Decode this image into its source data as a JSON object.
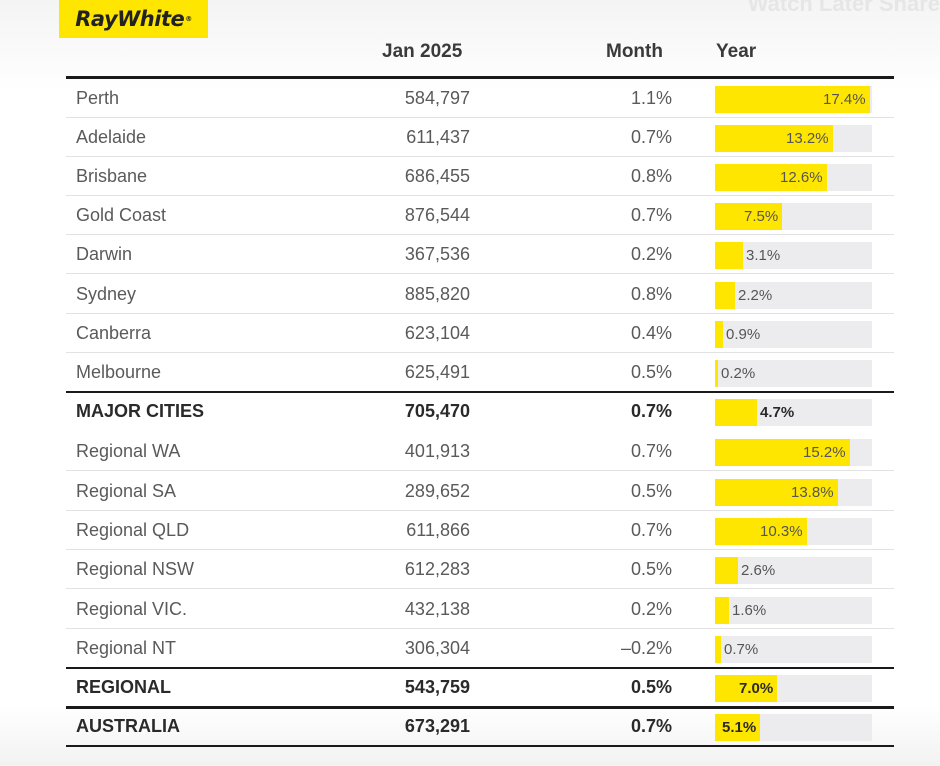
{
  "logo": {
    "text": "RayWhite",
    "mark": "®"
  },
  "corner_text": "Watch Later  Share",
  "header": {
    "col_value": "Jan 2025",
    "col_month": "Month",
    "col_year": "Year"
  },
  "colors": {
    "accent": "#ffe600",
    "track": "#ececef",
    "text": "#5a5a5a",
    "rule": "#1a1a1a"
  },
  "rows": [
    {
      "name": "Perth",
      "value": "584,797",
      "month": "1.1%",
      "year": "17.4%",
      "year_num": 17.4
    },
    {
      "name": "Adelaide",
      "value": "611,437",
      "month": "0.7%",
      "year": "13.2%",
      "year_num": 13.2
    },
    {
      "name": "Brisbane",
      "value": "686,455",
      "month": "0.8%",
      "year": "12.6%",
      "year_num": 12.6
    },
    {
      "name": "Gold Coast",
      "value": "876,544",
      "month": "0.7%",
      "year": "7.5%",
      "year_num": 7.5
    },
    {
      "name": "Darwin",
      "value": "367,536",
      "month": "0.2%",
      "year": "3.1%",
      "year_num": 3.1
    },
    {
      "name": "Sydney",
      "value": "885,820",
      "month": "0.8%",
      "year": "2.2%",
      "year_num": 2.2
    },
    {
      "name": "Canberra",
      "value": "623,104",
      "month": "0.4%",
      "year": "0.9%",
      "year_num": 0.9
    },
    {
      "name": "Melbourne",
      "value": "625,491",
      "month": "0.5%",
      "year": "0.2%",
      "year_num": 0.2
    },
    {
      "name": "MAJOR CITIES",
      "value": "705,470",
      "month": "0.7%",
      "year": "4.7%",
      "year_num": 4.7,
      "bold": true
    },
    {
      "name": "Regional WA",
      "value": "401,913",
      "month": "0.7%",
      "year": "15.2%",
      "year_num": 15.2
    },
    {
      "name": "Regional SA",
      "value": "289,652",
      "month": "0.5%",
      "year": "13.8%",
      "year_num": 13.8
    },
    {
      "name": "Regional QLD",
      "value": "611,866",
      "month": "0.7%",
      "year": "10.3%",
      "year_num": 10.3
    },
    {
      "name": "Regional NSW",
      "value": "612,283",
      "month": "0.5%",
      "year": "2.6%",
      "year_num": 2.6
    },
    {
      "name": "Regional VIC.",
      "value": "432,138",
      "month": "0.2%",
      "year": "1.6%",
      "year_num": 1.6
    },
    {
      "name": "Regional NT",
      "value": "306,304",
      "month": "–0.2%",
      "year": "0.7%",
      "year_num": 0.7
    },
    {
      "name": "REGIONAL",
      "value": "543,759",
      "month": "0.5%",
      "year": "7.0%",
      "year_num": 7.0,
      "bold": true
    },
    {
      "name": "AUSTRALIA",
      "value": "673,291",
      "month": "0.7%",
      "year": "5.1%",
      "year_num": 5.1,
      "bold": true
    }
  ]
}
